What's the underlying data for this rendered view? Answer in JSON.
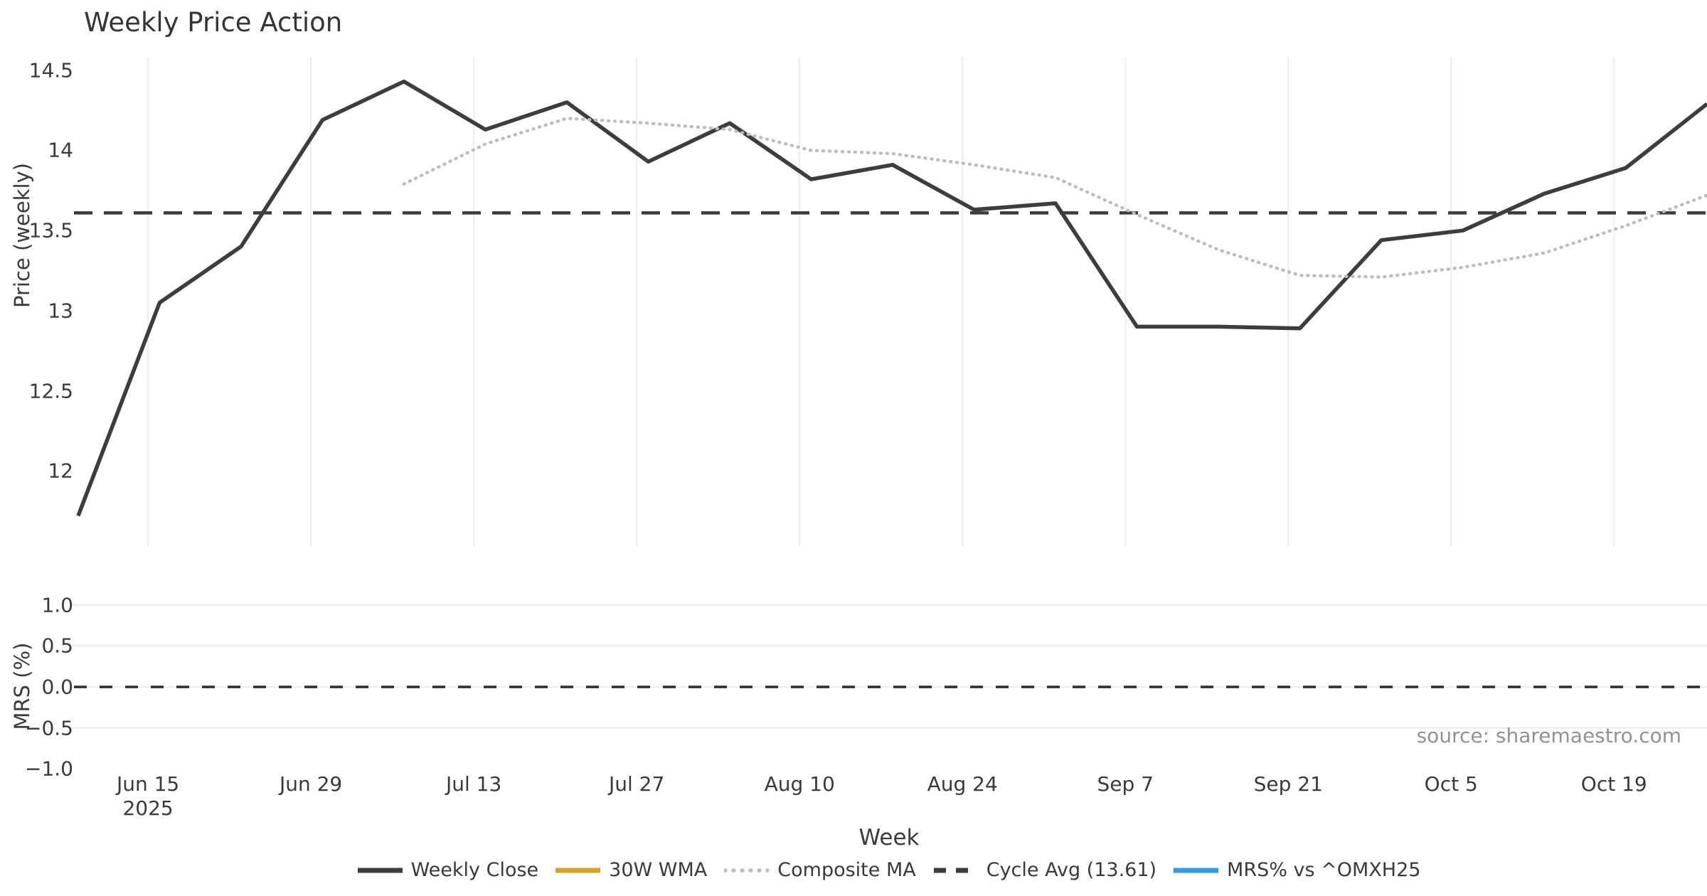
{
  "title": "Weekly Price Action",
  "source": "source: sharemaestro.com",
  "price_panel": {
    "ylabel": "Price (weekly)",
    "yticks": [
      "14.5",
      "14",
      "13.5",
      "13",
      "12.5",
      "12"
    ],
    "ytick_values": [
      14.5,
      14.0,
      13.5,
      13.0,
      12.5,
      12.0
    ]
  },
  "mrs_panel": {
    "ylabel": "MRS (%)",
    "yticks": [
      "1.0",
      "0.5",
      "0.0",
      "−0.5",
      "−1.0"
    ],
    "ytick_values": [
      1.0,
      0.5,
      0.0,
      -0.5,
      -1.0
    ]
  },
  "x_axis": {
    "title": "Week",
    "ticks": [
      {
        "label": "Jun 15",
        "sub": "2025"
      },
      {
        "label": "Jun 29",
        "sub": ""
      },
      {
        "label": "Jul 13",
        "sub": ""
      },
      {
        "label": "Jul 27",
        "sub": ""
      },
      {
        "label": "Aug 10",
        "sub": ""
      },
      {
        "label": "Aug 24",
        "sub": ""
      },
      {
        "label": "Sep 7",
        "sub": ""
      },
      {
        "label": "Sep 21",
        "sub": ""
      },
      {
        "label": "Oct 5",
        "sub": ""
      },
      {
        "label": "Oct 19",
        "sub": ""
      }
    ]
  },
  "legend": [
    {
      "label": "Weekly Close",
      "style": "solid",
      "color": "#3d3d3d"
    },
    {
      "label": "30W WMA",
      "style": "solid",
      "color": "#d9a420"
    },
    {
      "label": "Composite MA",
      "style": "dotted",
      "color": "#bdbdbd"
    },
    {
      "label": "Cycle Avg (13.61)",
      "style": "dashed",
      "color": "#3d3d3d"
    },
    {
      "label": "MRS% vs ^OMXH25",
      "style": "solid",
      "color": "#2e9ce9"
    }
  ],
  "chart_data": {
    "type": "line",
    "title": "Weekly Price Action",
    "xlabel": "Week",
    "x_weeks": [
      "Jun 9",
      "Jun 16",
      "Jun 23",
      "Jun 30",
      "Jul 7",
      "Jul 14",
      "Jul 21",
      "Jul 28",
      "Aug 4",
      "Aug 11",
      "Aug 18",
      "Aug 25",
      "Sep 1",
      "Sep 8",
      "Sep 15",
      "Sep 22",
      "Sep 29",
      "Oct 6",
      "Oct 13",
      "Oct 20",
      "Oct 27"
    ],
    "xtick_labels": [
      "Jun 15 2025",
      "Jun 29",
      "Jul 13",
      "Jul 27",
      "Aug 10",
      "Aug 24",
      "Sep 7",
      "Sep 21",
      "Oct 5",
      "Oct 19"
    ],
    "panels": [
      {
        "id": "price",
        "ylabel": "Price (weekly)",
        "yticks": [
          14.5,
          14.0,
          13.5,
          13.0,
          12.5,
          12.0
        ],
        "grid": "vertical-only"
      },
      {
        "id": "mrs",
        "ylabel": "MRS (%)",
        "yticks": [
          1.0,
          0.5,
          0.0,
          -0.5,
          -1.0
        ],
        "ylim": [
          -1.0,
          1.0
        ],
        "grid": "horizontal-only"
      }
    ],
    "series": [
      {
        "name": "Weekly Close",
        "panel": "price",
        "style": "solid",
        "color": "#3d3d3d",
        "values": [
          11.72,
          13.05,
          13.4,
          14.19,
          14.43,
          14.13,
          14.3,
          13.93,
          14.17,
          13.82,
          13.91,
          13.63,
          13.67,
          12.9,
          12.9,
          12.89,
          13.44,
          13.5,
          13.73,
          13.89,
          14.29
        ]
      },
      {
        "name": "Composite MA",
        "panel": "price",
        "style": "dotted",
        "color": "#bdbdbd",
        "values": [
          null,
          null,
          null,
          null,
          13.79,
          14.04,
          14.2,
          14.17,
          14.13,
          14.0,
          13.98,
          13.91,
          13.83,
          13.6,
          13.38,
          13.22,
          13.21,
          13.27,
          13.36,
          13.53,
          13.72
        ]
      },
      {
        "name": "30W WMA",
        "panel": "price",
        "style": "solid",
        "color": "#d9a420",
        "values": []
      },
      {
        "name": "MRS% vs ^OMXH25",
        "panel": "mrs",
        "style": "solid",
        "color": "#2e9ce9",
        "values": []
      }
    ],
    "hlines": [
      {
        "name": "Cycle Avg",
        "panel": "price",
        "value": 13.61,
        "style": "dashed",
        "color": "#3d3d3d"
      },
      {
        "name": "Zero Line",
        "panel": "mrs",
        "value": 0.0,
        "style": "dashed",
        "color": "#2b2b2b"
      }
    ],
    "legend_position": "bottom-center"
  }
}
